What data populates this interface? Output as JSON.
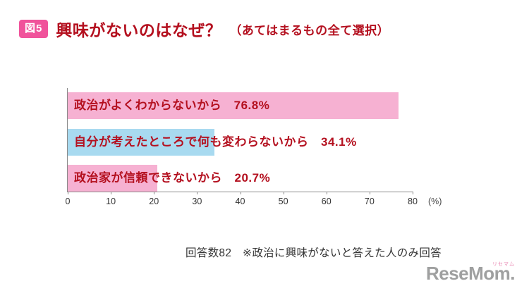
{
  "header": {
    "badge": "図5",
    "title_main": "興味がないのはなぜ？",
    "title_sub": "（あてはまるもの全て選択）"
  },
  "chart_data": {
    "type": "bar",
    "orientation": "horizontal",
    "title": "興味がないのはなぜ？（あてはまるもの全て選択）",
    "categories": [
      "政治がよくわからないから",
      "自分が考えたところで何も変わらないから",
      "政治家が信頼できないから"
    ],
    "values": [
      76.8,
      34.1,
      20.7
    ],
    "bar_colors": [
      "#f6b1d2",
      "#a8daf0",
      "#f6b1d2"
    ],
    "value_suffix": "%",
    "label_separator": "　",
    "xlim": [
      0,
      80
    ],
    "xticks": [
      0,
      10,
      20,
      30,
      40,
      50,
      60,
      70,
      80
    ],
    "x_unit_label": "(%)",
    "grid": false,
    "legend": "none"
  },
  "footer": {
    "note": "回答数82　※政治に興味がないと答えた人のみ回答"
  },
  "logo": {
    "main": "ReseMom.",
    "sub": "リセマム"
  },
  "colors": {
    "badge_bg": "#f0539b",
    "title_text": "#b4101f",
    "bar_label_text": "#b4101f",
    "bar_pink": "#f6b1d2",
    "bar_blue": "#a8daf0",
    "axis": "#8a8a8a",
    "tick_text": "#333333",
    "note_text": "#333333",
    "logo_text": "#9fa0a0",
    "logo_sub": "#e884b0"
  }
}
